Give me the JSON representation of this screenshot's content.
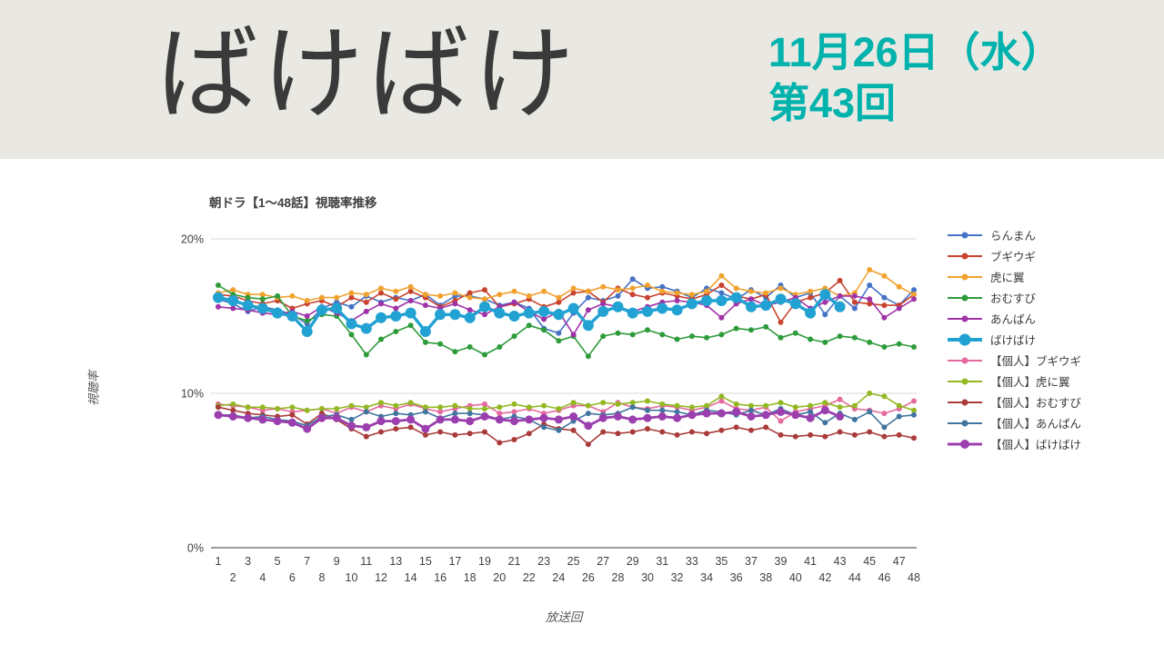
{
  "header": {
    "background": "#e9e8e2",
    "title": "ばけばけ",
    "title_color": "#3a3a3a",
    "date_line1": "11月26日（水）",
    "date_line2": "第43回",
    "date_color": "#00b2ac"
  },
  "chart_data": {
    "type": "line",
    "title": "朝ドラ【1～48話】視聴率推移",
    "xlabel": "放送回",
    "ylabel": "視聴率",
    "ylim": [
      0,
      20
    ],
    "grid": true,
    "legend_position": "right",
    "yticks": [
      {
        "value": 20,
        "label": "20%"
      },
      {
        "value": 10,
        "label": "10%"
      },
      {
        "value": 0,
        "label": "0%"
      }
    ],
    "x": [
      1,
      2,
      3,
      4,
      5,
      6,
      7,
      8,
      9,
      10,
      11,
      12,
      13,
      14,
      15,
      16,
      17,
      18,
      19,
      20,
      21,
      22,
      23,
      24,
      25,
      26,
      27,
      28,
      29,
      30,
      31,
      32,
      33,
      34,
      35,
      36,
      37,
      38,
      39,
      40,
      41,
      42,
      43,
      44,
      45,
      46,
      47,
      48
    ],
    "series": [
      {
        "name": "らんまん",
        "color": "#4472c4",
        "width": 1.6,
        "marker": 3,
        "values": [
          16.1,
          15.8,
          15.3,
          15.6,
          15.4,
          15.1,
          14.5,
          15.5,
          15.9,
          15.6,
          16.3,
          15.9,
          16.2,
          16.0,
          16.4,
          15.7,
          16.3,
          16.3,
          16.1,
          15.7,
          15.9,
          15.5,
          14.2,
          13.9,
          15.2,
          16.2,
          16.0,
          16.3,
          17.4,
          16.8,
          16.9,
          16.6,
          16.2,
          16.8,
          16.5,
          16.1,
          16.7,
          16.2,
          17.0,
          16.2,
          16.5,
          15.1,
          16.3,
          15.5,
          17.0,
          16.2,
          15.7,
          16.7
        ]
      },
      {
        "name": "ブギウギ",
        "color": "#c8432f",
        "width": 1.6,
        "marker": 3,
        "values": [
          16.4,
          16.3,
          16.0,
          15.8,
          16.0,
          15.5,
          15.8,
          16.0,
          15.6,
          16.2,
          15.9,
          16.5,
          16.1,
          16.6,
          16.2,
          15.6,
          16.0,
          16.5,
          16.7,
          15.6,
          15.8,
          16.1,
          15.6,
          15.9,
          16.5,
          16.6,
          15.9,
          16.8,
          16.4,
          16.2,
          16.5,
          16.3,
          16.1,
          16.4,
          17.0,
          16.3,
          16.1,
          16.4,
          14.6,
          15.9,
          16.2,
          16.5,
          17.3,
          15.9,
          15.8,
          15.7,
          15.7,
          16.4
        ]
      },
      {
        "name": "虎に翼",
        "color": "#f0a22e",
        "width": 1.6,
        "marker": 3,
        "values": [
          16.5,
          16.7,
          16.4,
          16.4,
          16.2,
          16.3,
          16.0,
          16.2,
          16.2,
          16.5,
          16.4,
          16.8,
          16.6,
          16.9,
          16.4,
          16.3,
          16.5,
          16.2,
          16.1,
          16.4,
          16.6,
          16.3,
          16.6,
          16.2,
          16.8,
          16.6,
          16.9,
          16.7,
          16.8,
          17.0,
          16.6,
          16.5,
          16.4,
          16.6,
          17.6,
          16.8,
          16.6,
          16.5,
          16.8,
          16.4,
          16.6,
          16.8,
          16.3,
          16.5,
          18.0,
          17.6,
          16.9,
          16.4
        ]
      },
      {
        "name": "おむすび",
        "color": "#2e9b3b",
        "width": 1.6,
        "marker": 3,
        "values": [
          17.0,
          16.4,
          16.2,
          16.1,
          16.3,
          15.0,
          14.7,
          15.1,
          15.0,
          13.8,
          12.5,
          13.5,
          14.0,
          14.4,
          13.3,
          13.2,
          12.7,
          13.0,
          12.5,
          13.0,
          13.7,
          14.4,
          14.1,
          13.4,
          13.7,
          12.4,
          13.7,
          13.9,
          13.8,
          14.1,
          13.8,
          13.5,
          13.7,
          13.6,
          13.8,
          14.2,
          14.1,
          14.3,
          13.6,
          13.9,
          13.5,
          13.3,
          13.7,
          13.6,
          13.3,
          13.0,
          13.2,
          13.0
        ]
      },
      {
        "name": "あんぱん",
        "color": "#a032a8",
        "width": 1.6,
        "marker": 3,
        "values": [
          15.6,
          15.5,
          15.4,
          15.2,
          15.1,
          15.3,
          15.0,
          15.6,
          15.2,
          14.7,
          15.3,
          15.8,
          15.5,
          16.0,
          15.7,
          15.5,
          15.8,
          15.4,
          15.1,
          15.6,
          15.9,
          15.3,
          14.8,
          15.3,
          13.8,
          15.4,
          15.8,
          15.6,
          15.3,
          15.6,
          15.9,
          16.0,
          15.9,
          15.7,
          14.9,
          15.8,
          16.1,
          15.7,
          15.9,
          16.2,
          15.5,
          15.9,
          16.3,
          16.3,
          16.1,
          14.9,
          15.5,
          16.1
        ]
      },
      {
        "name": "ばけばけ",
        "color": "#21a2d2",
        "width": 3.4,
        "marker": 6,
        "values": [
          16.2,
          16.0,
          15.7,
          15.5,
          15.2,
          15.0,
          14.0,
          15.4,
          15.5,
          14.5,
          14.2,
          14.9,
          15.0,
          15.2,
          14.0,
          15.1,
          15.1,
          14.9,
          15.6,
          15.2,
          15.0,
          15.2,
          15.3,
          15.1,
          15.5,
          14.4,
          15.3,
          15.6,
          15.2,
          15.3,
          15.5,
          15.4,
          15.8,
          16.0,
          16.0,
          16.2,
          15.6,
          15.7,
          16.1,
          15.8,
          15.2,
          16.4,
          15.6,
          null,
          null,
          null,
          null,
          null
        ]
      },
      {
        "name": "【個人】ブギウギ",
        "color": "#e46a9e",
        "width": 1.6,
        "marker": 3,
        "values": [
          9.3,
          9.2,
          9.1,
          8.9,
          9.0,
          8.8,
          8.9,
          9.0,
          8.7,
          9.1,
          8.8,
          9.2,
          9.0,
          9.3,
          9.0,
          8.8,
          9.0,
          9.2,
          9.3,
          8.7,
          8.8,
          9.0,
          8.7,
          8.9,
          9.2,
          9.2,
          8.8,
          9.4,
          9.1,
          9.0,
          9.2,
          9.1,
          8.9,
          9.1,
          9.5,
          9.0,
          8.9,
          9.1,
          8.2,
          8.8,
          9.0,
          9.2,
          9.6,
          9.0,
          8.9,
          8.7,
          9.0,
          9.5
        ]
      },
      {
        "name": "【個人】虎に翼",
        "color": "#93b822",
        "width": 1.6,
        "marker": 3,
        "values": [
          9.2,
          9.3,
          9.1,
          9.1,
          9.0,
          9.1,
          8.9,
          9.0,
          9.0,
          9.2,
          9.1,
          9.4,
          9.2,
          9.4,
          9.1,
          9.1,
          9.2,
          9.0,
          9.0,
          9.1,
          9.3,
          9.1,
          9.2,
          9.0,
          9.4,
          9.2,
          9.4,
          9.3,
          9.4,
          9.5,
          9.3,
          9.2,
          9.1,
          9.2,
          9.8,
          9.3,
          9.2,
          9.2,
          9.4,
          9.1,
          9.2,
          9.4,
          9.1,
          9.2,
          10.0,
          9.8,
          9.2,
          8.9
        ]
      },
      {
        "name": "【個人】おむすび",
        "color": "#aa3b3b",
        "width": 1.6,
        "marker": 3,
        "values": [
          9.1,
          8.9,
          8.7,
          8.6,
          8.5,
          8.6,
          8.0,
          8.7,
          8.3,
          7.7,
          7.2,
          7.5,
          7.7,
          7.8,
          7.3,
          7.5,
          7.3,
          7.4,
          7.5,
          6.8,
          7.0,
          7.4,
          8.0,
          7.7,
          7.6,
          6.7,
          7.5,
          7.4,
          7.5,
          7.7,
          7.5,
          7.3,
          7.5,
          7.4,
          7.6,
          7.8,
          7.6,
          7.8,
          7.3,
          7.2,
          7.3,
          7.2,
          7.5,
          7.3,
          7.5,
          7.2,
          7.3,
          7.1
        ]
      },
      {
        "name": "【個人】あんぱん",
        "color": "#41759f",
        "width": 1.6,
        "marker": 3,
        "values": [
          8.6,
          8.6,
          8.4,
          8.5,
          8.3,
          8.2,
          7.9,
          8.5,
          8.6,
          8.3,
          8.8,
          8.5,
          8.7,
          8.6,
          8.8,
          8.4,
          8.7,
          8.7,
          8.6,
          8.3,
          8.5,
          8.3,
          7.8,
          7.6,
          8.2,
          8.7,
          8.6,
          8.7,
          9.1,
          8.9,
          8.9,
          8.8,
          8.6,
          8.9,
          8.8,
          8.6,
          8.9,
          8.6,
          9.0,
          8.6,
          8.8,
          8.1,
          8.7,
          8.3,
          8.8,
          7.8,
          8.5,
          8.6
        ]
      },
      {
        "name": "【個人】ばけばけ",
        "color": "#9b3fae",
        "width": 2.8,
        "marker": 4.5,
        "values": [
          8.6,
          8.5,
          8.4,
          8.3,
          8.2,
          8.1,
          7.7,
          8.4,
          8.4,
          7.9,
          7.8,
          8.2,
          8.2,
          8.3,
          7.7,
          8.3,
          8.3,
          8.2,
          8.5,
          8.3,
          8.2,
          8.3,
          8.4,
          8.3,
          8.5,
          7.9,
          8.4,
          8.5,
          8.3,
          8.4,
          8.5,
          8.4,
          8.6,
          8.7,
          8.7,
          8.8,
          8.5,
          8.6,
          8.8,
          8.6,
          8.4,
          8.9,
          8.5,
          null,
          null,
          null,
          null,
          null
        ]
      }
    ]
  }
}
